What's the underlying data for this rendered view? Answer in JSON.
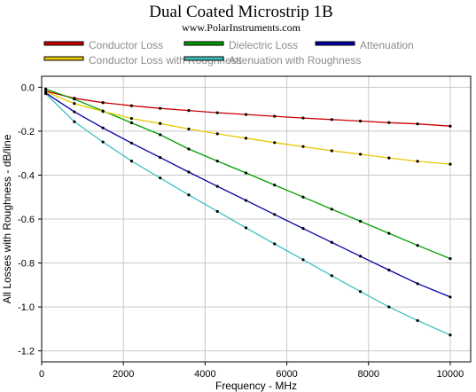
{
  "chart_data": {
    "type": "line",
    "title": "Dual Coated Microstrip 1B",
    "subtitle": "www.PolarInstruments.com",
    "xlabel": "Frequency - MHz",
    "ylabel": "All Losses with Roughness - dB/line",
    "xlim": [
      0,
      10500
    ],
    "ylim": [
      -1.25,
      0.05
    ],
    "xticks": [
      0,
      2000,
      4000,
      6000,
      8000,
      10000
    ],
    "yticks": [
      0.0,
      -0.2,
      -0.4,
      -0.6,
      -0.8,
      -1.0,
      -1.2
    ],
    "ytick_labels": [
      "0.0",
      "-0.2",
      "-0.4",
      "-0.6",
      "-0.8",
      "-1.0",
      "-1.2"
    ],
    "grid": true,
    "legend_position": "top",
    "x": [
      100,
      800,
      1500,
      2200,
      2900,
      3600,
      4300,
      5000,
      5700,
      6400,
      7100,
      7800,
      8500,
      9200,
      10000
    ],
    "series": [
      {
        "name": "Conductor Loss",
        "color": "#cc0000",
        "values": [
          -0.018,
          -0.05,
          -0.07,
          -0.084,
          -0.096,
          -0.106,
          -0.116,
          -0.124,
          -0.132,
          -0.14,
          -0.147,
          -0.154,
          -0.161,
          -0.167,
          -0.177
        ]
      },
      {
        "name": "Dielectric Loss",
        "color": "#00a000",
        "values": [
          -0.008,
          -0.054,
          -0.108,
          -0.162,
          -0.216,
          -0.281,
          -0.336,
          -0.39,
          -0.445,
          -0.5,
          -0.555,
          -0.61,
          -0.665,
          -0.72,
          -0.78
        ]
      },
      {
        "name": "Attenuation",
        "color": "#0000a8",
        "values": [
          -0.026,
          -0.112,
          -0.185,
          -0.254,
          -0.32,
          -0.386,
          -0.451,
          -0.515,
          -0.579,
          -0.643,
          -0.706,
          -0.769,
          -0.832,
          -0.894,
          -0.955
        ]
      },
      {
        "name": "Conductor Loss with Roughness",
        "color": "#e8c800",
        "values": [
          -0.021,
          -0.074,
          -0.11,
          -0.142,
          -0.165,
          -0.19,
          -0.212,
          -0.232,
          -0.252,
          -0.27,
          -0.289,
          -0.305,
          -0.322,
          -0.337,
          -0.35
        ]
      },
      {
        "name": "Attenuation with Roughness",
        "color": "#40c0c0",
        "values": [
          -0.029,
          -0.157,
          -0.249,
          -0.336,
          -0.413,
          -0.49,
          -0.565,
          -0.64,
          -0.713,
          -0.785,
          -0.858,
          -0.93,
          -1.0,
          -1.062,
          -1.128
        ]
      }
    ]
  }
}
